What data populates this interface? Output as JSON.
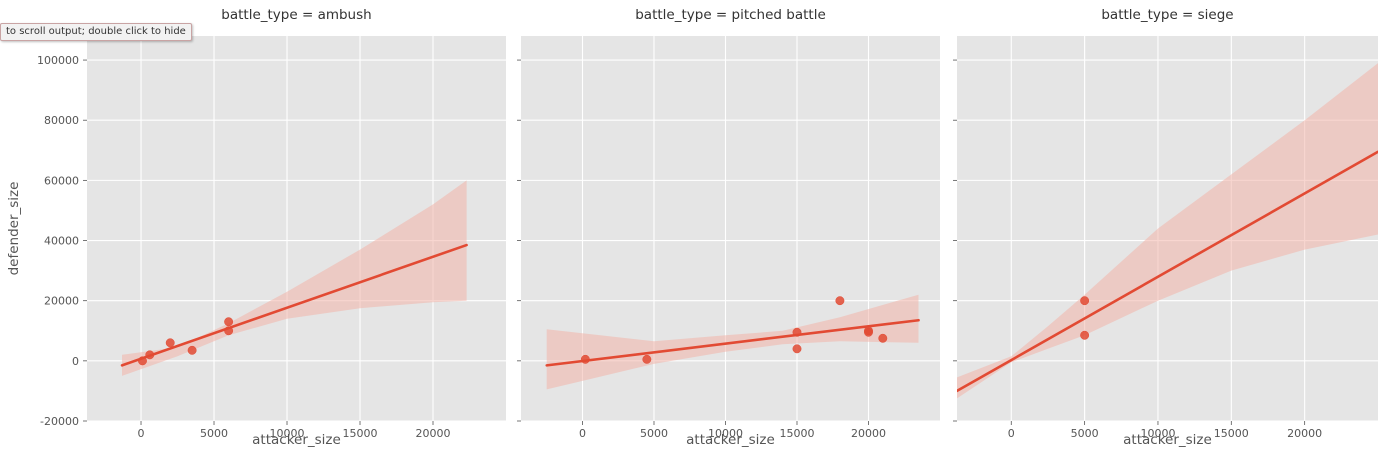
{
  "output_tooltip": "to scroll output; double click to hide",
  "colors": {
    "panel_bg": "#E5E5E5",
    "grid": "#FFFFFF",
    "accent": "#E24A33",
    "band": "#F2B5AA"
  },
  "chart_data": {
    "type": "scatter",
    "shared_y": true,
    "ylabel": "defender_size",
    "ylim": [
      -20000,
      108000
    ],
    "yticks": [
      -20000,
      0,
      20000,
      40000,
      60000,
      80000,
      100000
    ],
    "panels": [
      {
        "title": "battle_type = ambush",
        "xlabel": "attacker_size",
        "xlim": [
          -3700,
          25000
        ],
        "xticks": [
          0,
          5000,
          10000,
          15000,
          20000
        ],
        "points": [
          [
            100,
            0
          ],
          [
            600,
            2000
          ],
          [
            2000,
            6000
          ],
          [
            3500,
            3500
          ],
          [
            6000,
            13000
          ],
          [
            6000,
            10000
          ]
        ],
        "fit": {
          "x": [
            -1300,
            22300
          ],
          "y": [
            -1500,
            38500
          ]
        },
        "ci": {
          "x": [
            -1300,
            2500,
            6000,
            10000,
            15000,
            20000,
            22300
          ],
          "lower": [
            -5000,
            1500,
            8500,
            14000,
            17500,
            19500,
            20000
          ],
          "upper": [
            2000,
            4500,
            12500,
            23000,
            37000,
            52000,
            60000
          ]
        }
      },
      {
        "title": "battle_type = pitched battle",
        "xlabel": "attacker_size",
        "xlim": [
          -4300,
          25000
        ],
        "xticks": [
          0,
          5000,
          10000,
          15000,
          20000
        ],
        "points": [
          [
            200,
            500
          ],
          [
            4500,
            500
          ],
          [
            15000,
            9500
          ],
          [
            15000,
            4000
          ],
          [
            18000,
            20000
          ],
          [
            20000,
            10000
          ],
          [
            20000,
            9500
          ],
          [
            21000,
            7500
          ]
        ],
        "fit": {
          "x": [
            -2500,
            23500
          ],
          "y": [
            -1500,
            13500
          ]
        },
        "ci": {
          "x": [
            -2500,
            5000,
            10000,
            14000,
            18000,
            23500
          ],
          "lower": [
            -9500,
            -1000,
            3000,
            5500,
            6500,
            6000
          ],
          "upper": [
            10500,
            6500,
            8500,
            10000,
            14500,
            22000
          ]
        }
      },
      {
        "title": "battle_type = siege",
        "xlabel": "attacker_size",
        "xlim": [
          -3700,
          25000
        ],
        "xticks": [
          0,
          5000,
          10000,
          15000,
          20000
        ],
        "points": [
          [
            5000,
            20000
          ],
          [
            5000,
            8500
          ]
        ],
        "fit": {
          "x": [
            -3700,
            25000
          ],
          "y": [
            -10000,
            69500
          ]
        },
        "ci": {
          "x": [
            -3700,
            0,
            2500,
            5000,
            10000,
            15000,
            20000,
            25000
          ],
          "lower": [
            -12500,
            -500,
            4000,
            8500,
            20000,
            30000,
            37000,
            42000
          ],
          "upper": [
            -5500,
            1500,
            11500,
            22000,
            44000,
            62000,
            80000,
            99000
          ]
        }
      }
    ]
  }
}
